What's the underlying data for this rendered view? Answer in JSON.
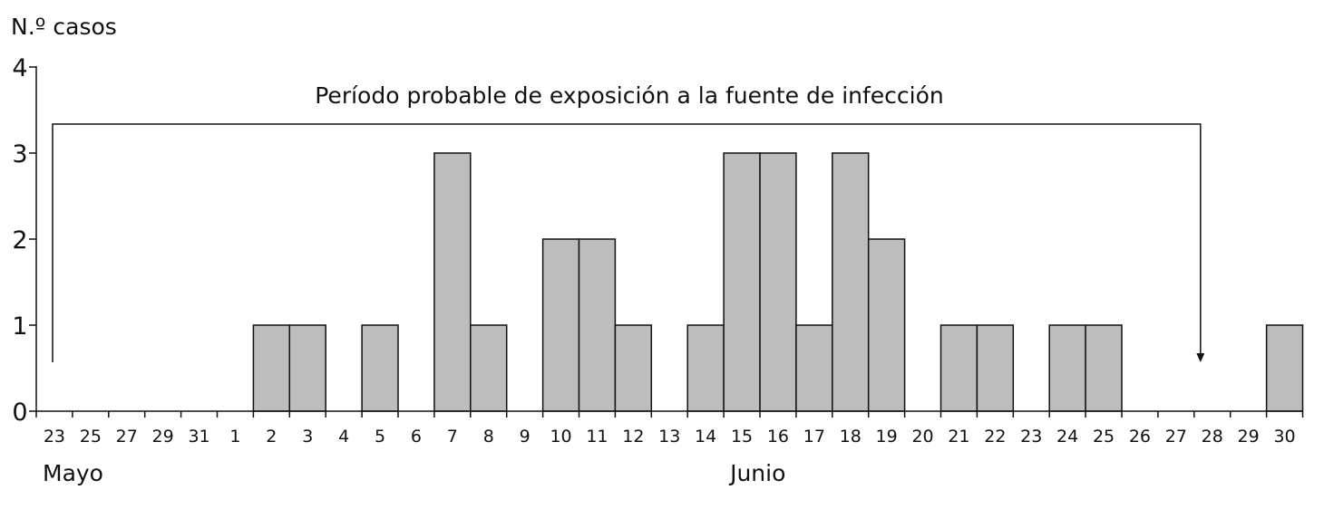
{
  "chart_data": {
    "type": "bar",
    "ylabel": "N.º casos",
    "ylim": [
      0,
      4
    ],
    "yticks": [
      "0",
      "1",
      "2",
      "3",
      "4"
    ],
    "categories": [
      "23",
      "25",
      "27",
      "29",
      "31",
      "1",
      "2",
      "3",
      "4",
      "5",
      "6",
      "7",
      "8",
      "9",
      "10",
      "11",
      "12",
      "13",
      "14",
      "15",
      "16",
      "17",
      "18",
      "19",
      "20",
      "21",
      "22",
      "23",
      "24",
      "25",
      "26",
      "27",
      "28",
      "29",
      "30"
    ],
    "values": [
      0,
      0,
      0,
      0,
      0,
      0,
      1,
      1,
      0,
      1,
      0,
      3,
      1,
      0,
      2,
      2,
      1,
      0,
      1,
      3,
      3,
      1,
      3,
      2,
      0,
      1,
      1,
      0,
      1,
      1,
      0,
      0,
      0,
      0,
      1
    ],
    "month_labels": [
      {
        "text": "Mayo",
        "at_category": 0
      },
      {
        "text": "Junio",
        "at_category": 19
      }
    ],
    "annotation": {
      "text": "Período probable de exposición a la fuente de infección",
      "from_category": 0,
      "to_category": 32
    },
    "bar_color": "#bdbdbd",
    "grid": false
  }
}
